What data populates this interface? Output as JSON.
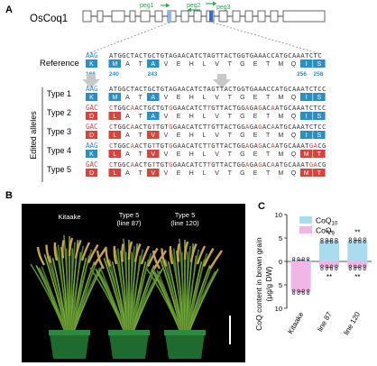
{
  "panels": {
    "a": "A",
    "b": "B",
    "c": "C"
  },
  "gene": {
    "name": "OsCoq1"
  },
  "pegs": {
    "peg1": "peg1",
    "peg2": "peg2",
    "peg3": "peg3"
  },
  "reference": {
    "label": "Reference",
    "left_codon": "AAG",
    "left_aa": "K",
    "left_pos": "166",
    "seq": "ATGGCTACTGCTGTAGAACATCTAGTTACTGGTGAAACCATGCAAATCTC",
    "aa": [
      "M",
      "A",
      "T",
      "A",
      "V",
      "E",
      "H",
      "L",
      "V",
      "T",
      "G",
      "E",
      "T",
      "M",
      "Q",
      "I",
      "S"
    ],
    "positions": {
      "p240": "240",
      "p243": "243",
      "p256": "256",
      "p258": "258"
    }
  },
  "edited_alleles_label": "Edited alleles",
  "types": [
    {
      "label": "Type 1",
      "codon": "AAG",
      "aa_left": "K",
      "seq": "ATGGCTACTGCTGTAGAACATCTAGTTACTGGTGAAACCATGCAAATCTCC",
      "aa": [
        "M",
        "A",
        "T",
        "A",
        "V",
        "E",
        "H",
        "L",
        "V",
        "T",
        "G",
        "E",
        "T",
        "M",
        "Q",
        "I",
        "S"
      ]
    },
    {
      "label": "Type 2",
      "codon": "GAC",
      "aa_left": "D",
      "seq": "CTGGCAACTGCTGTGGAACATCTTGTTACTGGAGAGACAATGCAAATCTCC",
      "aa": [
        "L",
        "A",
        "T",
        "A",
        "V",
        "E",
        "H",
        "L",
        "V",
        "T",
        "G",
        "E",
        "T",
        "M",
        "Q",
        "I",
        "S"
      ]
    },
    {
      "label": "Type 3",
      "codon": "GAC",
      "aa_left": "D",
      "seq": "CTGGCAACTGTTGTGGAACATCTTGTTACTGGAGAGACAATGCAAATCTCC",
      "aa": [
        "L",
        "A",
        "T",
        "V",
        "V",
        "E",
        "H",
        "L",
        "V",
        "T",
        "G",
        "E",
        "T",
        "M",
        "Q",
        "I",
        "S"
      ]
    },
    {
      "label": "Type 4",
      "codon": "AAG",
      "aa_left": "K",
      "seq": "CTGGCAACTGTTGTGGAACATCTTGTTACTGGAGAGACAATGCAAATGACG",
      "aa": [
        "L",
        "A",
        "T",
        "V",
        "V",
        "E",
        "H",
        "L",
        "V",
        "T",
        "G",
        "E",
        "T",
        "M",
        "Q",
        "M",
        "T"
      ]
    },
    {
      "label": "Type 5",
      "codon": "GAC",
      "aa_left": "D",
      "seq": "CTGGCAACTGTTGTGGAACATCTTGTTACTGGAGAGACAATGCAAATGACG",
      "aa": [
        "L",
        "A",
        "T",
        "V",
        "V",
        "E",
        "H",
        "L",
        "V",
        "T",
        "G",
        "E",
        "T",
        "M",
        "Q",
        "M",
        "T"
      ]
    }
  ],
  "plants": {
    "kitaake": "Kitaake",
    "line87_a": "Type 5",
    "line87_b": "(line 87)",
    "line120_a": "Type 5",
    "line120_b": "(line 120)"
  },
  "chart_data": {
    "type": "bar",
    "ylabel": "CoQ content in brown grain",
    "ylabel2": "(μg/g DW)",
    "categories": [
      "Kitaake",
      "line 87",
      "line 120"
    ],
    "yticks": [
      "10",
      "5",
      "0",
      "5",
      "10"
    ],
    "ylim": [
      -10,
      10
    ],
    "series": [
      {
        "name": "CoQ",
        "sub": "10",
        "values": [
          0.3,
          4.4,
          4.5
        ],
        "color": "#a8dcee"
      },
      {
        "name": "CoQ",
        "sub": "9",
        "values": [
          -6.5,
          -1.3,
          -1.3
        ],
        "color": "#f0b7e6"
      }
    ],
    "significance": [
      {
        "category": 1,
        "side": "top",
        "label": "**"
      },
      {
        "category": 2,
        "side": "top",
        "label": "**"
      },
      {
        "category": 1,
        "side": "bottom",
        "label": "**"
      },
      {
        "category": 2,
        "side": "bottom",
        "label": "**"
      }
    ],
    "legend": "top-right",
    "grid": false
  }
}
